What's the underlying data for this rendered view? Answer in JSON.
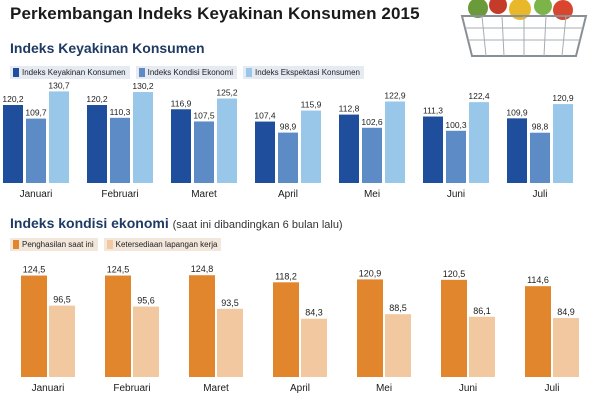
{
  "title": "Perkembangan Indeks Keyakinan Konsumen 2015",
  "chart_data": [
    {
      "type": "bar",
      "title": "Indeks Keyakinan Konsumen",
      "categories": [
        "Januari",
        "Februari",
        "Maret",
        "April",
        "Mei",
        "Juni",
        "Juli"
      ],
      "series": [
        {
          "name": "Indeks Keyakinan Konsumen",
          "color": "#1f4e9c",
          "values": [
            120.2,
            120.2,
            116.9,
            107.4,
            112.8,
            111.3,
            109.9
          ],
          "labels": [
            "120,2",
            "120,2",
            "116,9",
            "107,4",
            "112,8",
            "111,3",
            "109,9"
          ]
        },
        {
          "name": "Indeks Kondisi Ekonomi",
          "color": "#5d8bc6",
          "values": [
            109.7,
            110.3,
            107.5,
            98.9,
            102.6,
            100.3,
            98.8
          ],
          "labels": [
            "109,7",
            "110,3",
            "107,5",
            "98,9",
            "102,6",
            "100,3",
            "98,8"
          ]
        },
        {
          "name": "Indeks Ekspektasi Konsumen",
          "color": "#98c7e9",
          "values": [
            130.7,
            130.2,
            125.2,
            115.9,
            122.9,
            122.4,
            120.9
          ],
          "labels": [
            "130,7",
            "130,2",
            "125,2",
            "115,9",
            "122,9",
            "122,4",
            "120,9"
          ]
        }
      ],
      "ylim": [
        0,
        140
      ],
      "legend": "top-left"
    },
    {
      "type": "bar",
      "title": "Indeks kondisi ekonomi",
      "note": "(saat ini dibandingkan 6 bulan lalu)",
      "categories": [
        "Januari",
        "Februari",
        "Maret",
        "April",
        "Mei",
        "Juni",
        "Juli"
      ],
      "series": [
        {
          "name": "Penghasilan saat ini",
          "color": "#e2862e",
          "values": [
            124.5,
            124.5,
            124.8,
            118.2,
            120.9,
            120.5,
            114.6
          ],
          "labels": [
            "124,5",
            "124,5",
            "124,8",
            "118,2",
            "120,9",
            "120,5",
            "114,6"
          ]
        },
        {
          "name": "Ketersediaan lapangan kerja",
          "color": "#f2c8a0",
          "values": [
            96.5,
            95.6,
            93.5,
            84.3,
            88.5,
            86.1,
            84.9
          ],
          "labels": [
            "96,5",
            "95,6",
            "93,5",
            "84,3",
            "88,5",
            "86,1",
            "84,9"
          ]
        }
      ],
      "ylim": [
        0,
        135
      ],
      "legend": "top-left"
    }
  ]
}
